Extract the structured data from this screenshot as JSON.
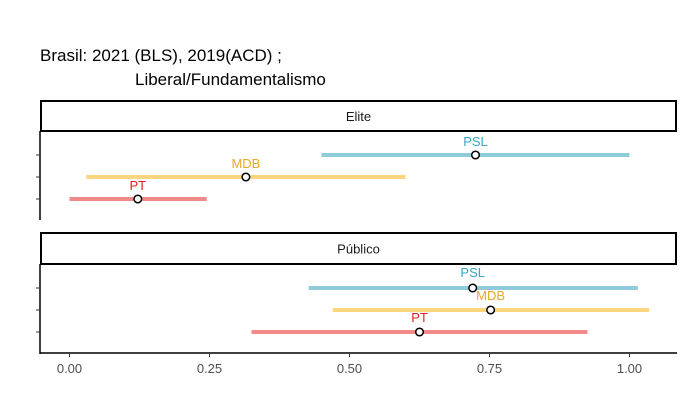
{
  "chart_data": {
    "type": "errorbar",
    "title_lines": [
      "Brasil: 2021 (BLS), 2019(ACD) ;",
      "Liberal/Fundamentalismo"
    ],
    "xlim": [
      -0.05,
      1.08
    ],
    "x_ticks": [
      0.0,
      0.25,
      0.5,
      0.75,
      1.0
    ],
    "x_tick_labels": [
      "0.00",
      "0.25",
      "0.50",
      "0.75",
      "1.00"
    ],
    "grid": false,
    "colors": {
      "PSL": "#8ecbdb",
      "MDB": "#fbd67f",
      "PT": "#f28a8a",
      "PSL_text": "#3aa6c4",
      "MDB_text": "#e6a82a",
      "PT_text": "#e02020"
    },
    "panels": [
      {
        "label": "Elite",
        "rows": [
          {
            "party": "PSL",
            "estimate": 0.725,
            "low": 0.45,
            "high": 1.0
          },
          {
            "party": "MDB",
            "estimate": 0.315,
            "low": 0.03,
            "high": 0.6
          },
          {
            "party": "PT",
            "estimate": 0.122,
            "low": 0.0,
            "high": 0.245
          }
        ]
      },
      {
        "label": "Público",
        "rows": [
          {
            "party": "PSL",
            "estimate": 0.72,
            "low": 0.427,
            "high": 1.015
          },
          {
            "party": "MDB",
            "estimate": 0.752,
            "low": 0.47,
            "high": 1.035
          },
          {
            "party": "PT",
            "estimate": 0.625,
            "low": 0.325,
            "high": 0.925
          }
        ]
      }
    ]
  }
}
